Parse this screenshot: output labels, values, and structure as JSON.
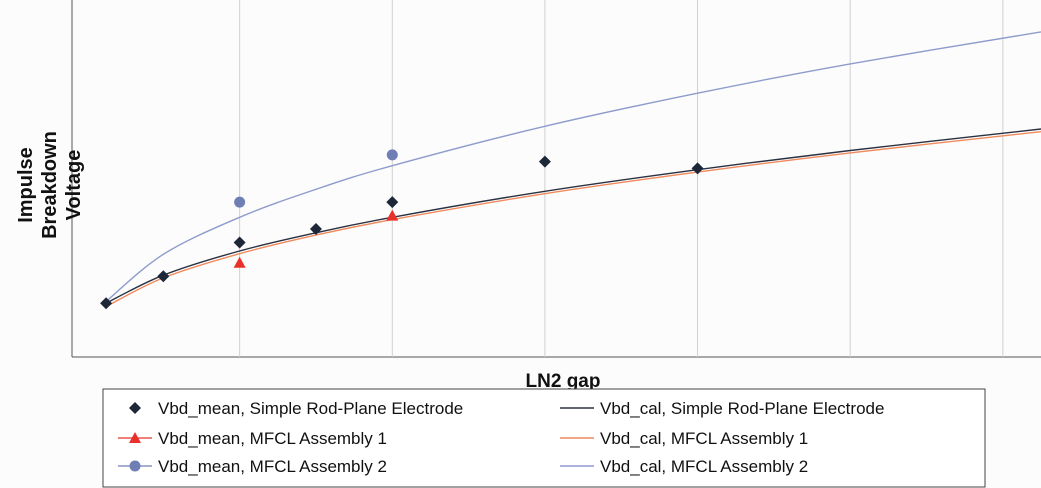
{
  "chart_data": {
    "type": "scatter",
    "xlabel": "LN2 gap",
    "ylabel_lines": [
      "Impulse",
      "Breakdown",
      "Voltage"
    ],
    "grid": "vertical-lines-only",
    "legend_placement": "bottom",
    "axis_units_note": "axes unlabeled; values are relative (x: gap units 0-12.5, y: 0-100)",
    "xlim": [
      0,
      12.5
    ],
    "ylim": [
      0,
      100
    ],
    "gridlines_x": [
      2,
      4,
      6,
      8,
      10,
      12
    ],
    "series": [
      {
        "name": "Vbd_mean, Simple Rod-Plane Electrode",
        "kind": "scatter",
        "marker": "diamond",
        "color": "#1c2738",
        "points": [
          [
            0.25,
            13
          ],
          [
            1,
            21
          ],
          [
            2,
            31
          ],
          [
            3,
            35
          ],
          [
            4,
            43
          ],
          [
            6,
            55
          ],
          [
            8,
            53
          ]
        ]
      },
      {
        "name": "Vbd_mean, MFCL Assembly 1",
        "kind": "scatter",
        "marker": "triangle",
        "color": "#e8312a",
        "points": [
          [
            2,
            25
          ],
          [
            4,
            39
          ]
        ]
      },
      {
        "name": "Vbd_mean, MFCL Assembly 2",
        "kind": "scatter",
        "marker": "circle",
        "color": "#6f7fb6",
        "points": [
          [
            2,
            43
          ],
          [
            4,
            57
          ]
        ]
      },
      {
        "name": "Vbd_cal, Simple Rod-Plane Electrode",
        "kind": "line",
        "color": "#2a3140",
        "points": [
          [
            0.25,
            13
          ],
          [
            1,
            21.3
          ],
          [
            2,
            28.5
          ],
          [
            3,
            33.9
          ],
          [
            4,
            38.5
          ],
          [
            6,
            46.2
          ],
          [
            8,
            52.6
          ],
          [
            10,
            58.3
          ],
          [
            12.5,
            64.7
          ]
        ]
      },
      {
        "name": "Vbd_cal, MFCL Assembly 1",
        "kind": "line",
        "color": "#f08a5d",
        "points": [
          [
            0.25,
            12
          ],
          [
            1,
            20.5
          ],
          [
            2,
            27.7
          ],
          [
            3,
            33.2
          ],
          [
            4,
            37.8
          ],
          [
            6,
            45.5
          ],
          [
            8,
            51.9
          ],
          [
            10,
            57.6
          ],
          [
            12.5,
            63.9
          ]
        ]
      },
      {
        "name": "Vbd_cal, MFCL Assembly 2",
        "kind": "line",
        "color": "#8e9ccc",
        "points": [
          [
            0.25,
            13.5
          ],
          [
            1,
            27.5
          ],
          [
            2,
            38.5
          ],
          [
            3,
            46.8
          ],
          [
            4,
            53.8
          ],
          [
            6,
            65.5
          ],
          [
            8,
            75.3
          ],
          [
            10,
            84
          ],
          [
            12.5,
            93.5
          ]
        ]
      }
    ]
  }
}
